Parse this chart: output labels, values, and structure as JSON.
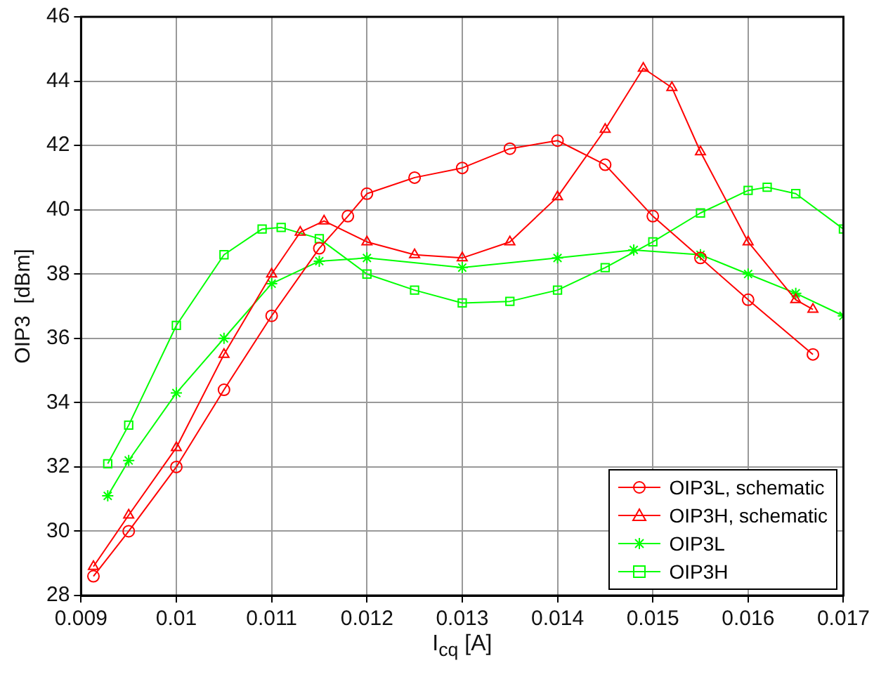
{
  "chart_data": {
    "type": "line",
    "xlabel": "I$_{cq}$  [A]",
    "ylabel": "OIP3  [dBm]",
    "xlim": [
      0.009,
      0.017
    ],
    "xticks": [
      0.009,
      0.01,
      0.011,
      0.012,
      0.013,
      0.014,
      0.015,
      0.016,
      0.017
    ],
    "ylim": [
      28,
      46
    ],
    "yticks": [
      28,
      30,
      32,
      34,
      36,
      38,
      40,
      42,
      44,
      46
    ],
    "grid": true,
    "legend": "bottom right",
    "line_style": "solid",
    "series": [
      {
        "name": "OIP3L,  schematic",
        "color": "#ff0000",
        "marker": "circle",
        "x": [
          0.00913,
          0.0095,
          0.01,
          0.0105,
          0.011,
          0.0115,
          0.0118,
          0.012,
          0.0125,
          0.013,
          0.0135,
          0.014,
          0.0145,
          0.015,
          0.0155,
          0.016,
          0.01668
        ],
        "values": [
          28.6,
          30.0,
          32.0,
          34.4,
          36.7,
          38.8,
          39.8,
          40.5,
          41.0,
          41.3,
          41.9,
          42.15,
          41.4,
          39.8,
          38.5,
          37.2,
          35.5
        ]
      },
      {
        "name": "OIP3H,  schematic",
        "color": "#ff0000",
        "marker": "triangle",
        "x": [
          0.00913,
          0.0095,
          0.01,
          0.0105,
          0.011,
          0.0113,
          0.01155,
          0.012,
          0.0125,
          0.013,
          0.0135,
          0.014,
          0.0145,
          0.0149,
          0.0152,
          0.0155,
          0.016,
          0.0165,
          0.01668
        ],
        "values": [
          28.9,
          30.5,
          32.6,
          35.5,
          38.0,
          39.3,
          39.65,
          39.0,
          38.6,
          38.5,
          39.0,
          40.4,
          42.5,
          44.4,
          43.8,
          41.8,
          39.0,
          37.2,
          36.9
        ]
      },
      {
        "name": "OIP3L",
        "color": "#00ff00",
        "marker": "cross",
        "x": [
          0.00928,
          0.0095,
          0.01,
          0.0105,
          0.011,
          0.0115,
          0.012,
          0.013,
          0.014,
          0.0148,
          0.0155,
          0.016,
          0.0165,
          0.017
        ],
        "values": [
          31.1,
          32.2,
          34.3,
          36.0,
          37.7,
          38.4,
          38.5,
          38.2,
          38.5,
          38.75,
          38.6,
          38.0,
          37.4,
          36.7
        ]
      },
      {
        "name": "OIP3H",
        "color": "#00ff00",
        "marker": "square",
        "x": [
          0.00928,
          0.0095,
          0.01,
          0.0105,
          0.0109,
          0.0111,
          0.0115,
          0.012,
          0.0125,
          0.013,
          0.0135,
          0.014,
          0.0145,
          0.015,
          0.0155,
          0.016,
          0.0162,
          0.0165,
          0.017
        ],
        "values": [
          32.1,
          33.3,
          36.4,
          38.6,
          39.4,
          39.45,
          39.1,
          38.0,
          37.5,
          37.1,
          37.15,
          37.5,
          38.2,
          39.0,
          39.9,
          40.6,
          40.7,
          40.5,
          39.4
        ]
      }
    ]
  }
}
